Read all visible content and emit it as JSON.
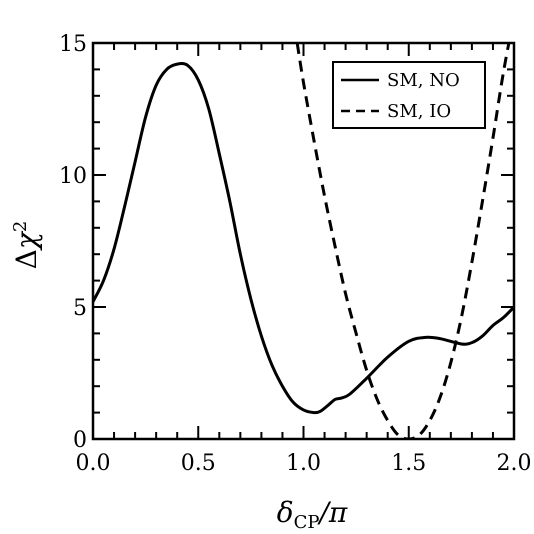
{
  "chart_data": {
    "type": "line",
    "title": "",
    "xlabel": "δCP/π",
    "ylabel": "Δχ²",
    "xlim": [
      0.0,
      2.0
    ],
    "ylim": [
      0,
      15
    ],
    "x_ticks": [
      "0.0",
      "0.5",
      "1.0",
      "1.5",
      "2.0"
    ],
    "y_ticks": [
      "0",
      "5",
      "10",
      "15"
    ],
    "grid": false,
    "legend": "top-right",
    "series": [
      {
        "name": "SM, NO",
        "style": "solid",
        "color": "#000000",
        "x": [
          0.0,
          0.05,
          0.1,
          0.15,
          0.2,
          0.25,
          0.3,
          0.35,
          0.4,
          0.45,
          0.5,
          0.55,
          0.6,
          0.65,
          0.7,
          0.75,
          0.8,
          0.85,
          0.9,
          0.95,
          1.0,
          1.05,
          1.08,
          1.12,
          1.15,
          1.18,
          1.22,
          1.3,
          1.4,
          1.5,
          1.58,
          1.65,
          1.75,
          1.8,
          1.85,
          1.9,
          1.95,
          2.0
        ],
        "y": [
          5.2,
          6.0,
          7.2,
          8.8,
          10.5,
          12.2,
          13.4,
          14.0,
          14.2,
          14.15,
          13.6,
          12.5,
          10.8,
          9.0,
          7.0,
          5.3,
          3.9,
          2.8,
          2.0,
          1.4,
          1.1,
          1.0,
          1.05,
          1.3,
          1.5,
          1.55,
          1.7,
          2.3,
          3.1,
          3.7,
          3.85,
          3.8,
          3.6,
          3.65,
          3.9,
          4.3,
          4.6,
          5.0
        ]
      },
      {
        "name": "SM, IO",
        "style": "dashed",
        "color": "#000000",
        "x": [
          0.97,
          1.0,
          1.05,
          1.1,
          1.15,
          1.2,
          1.25,
          1.3,
          1.35,
          1.4,
          1.45,
          1.5,
          1.55,
          1.6,
          1.65,
          1.7,
          1.75,
          1.8,
          1.85,
          1.9,
          1.95,
          2.0
        ],
        "y": [
          15.0,
          13.5,
          11.3,
          9.2,
          7.3,
          5.5,
          4.0,
          2.6,
          1.5,
          0.7,
          0.15,
          0.0,
          0.15,
          0.7,
          1.6,
          2.9,
          4.6,
          6.7,
          9.0,
          11.4,
          13.9,
          16.0
        ]
      }
    ]
  }
}
